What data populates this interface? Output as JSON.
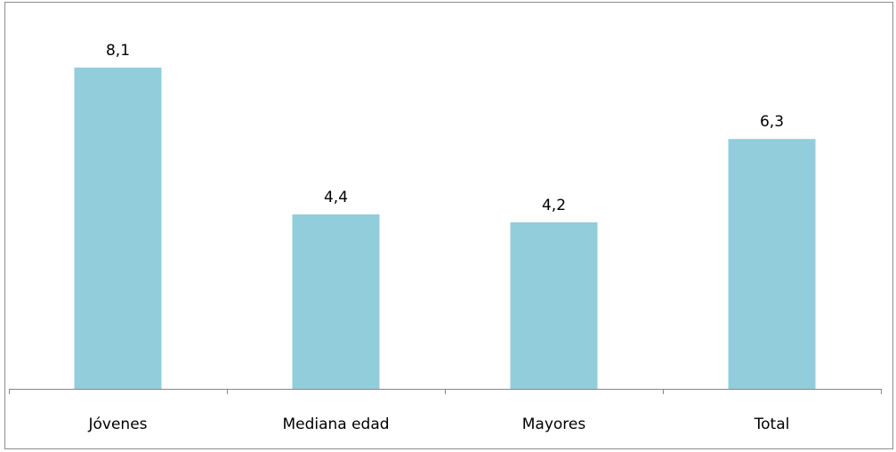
{
  "chart_data": {
    "type": "bar",
    "categories": [
      "Jóvenes",
      "Mediana edad",
      "Mayores",
      "Total"
    ],
    "values": [
      8.1,
      4.4,
      4.2,
      6.3
    ],
    "value_labels": [
      "8,1",
      "4,4",
      "4,2",
      "6,3"
    ],
    "title": "",
    "xlabel": "",
    "ylabel": "",
    "ylim": [
      0,
      9
    ],
    "grid": false,
    "legend": "none",
    "colors": {
      "bar": "#92CDDC",
      "axis": "#868686",
      "frame": "#8c8c8c"
    }
  }
}
